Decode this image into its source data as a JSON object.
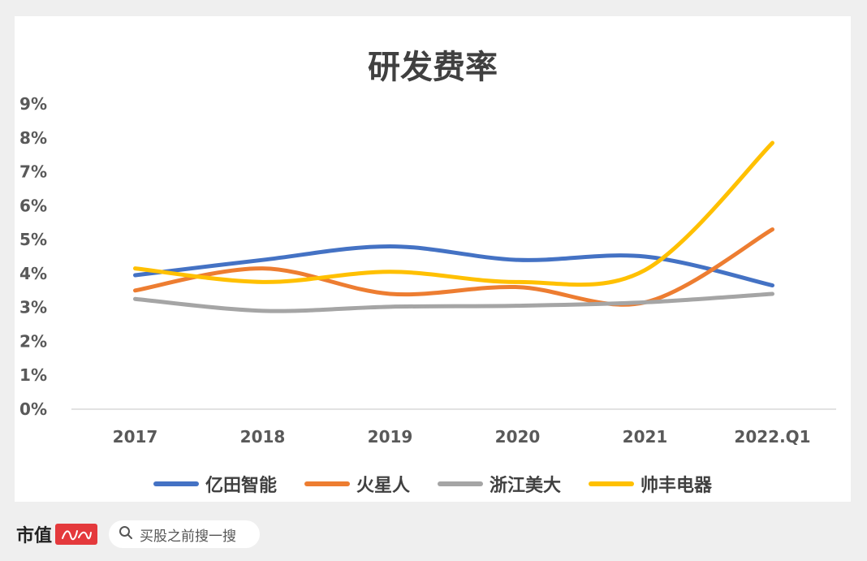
{
  "chart_data": {
    "type": "line",
    "title": "研发费率",
    "categories": [
      "2017",
      "2018",
      "2019",
      "2020",
      "2021",
      "2022.Q1"
    ],
    "y_ticks": [
      "0%",
      "1%",
      "2%",
      "3%",
      "4%",
      "5%",
      "6%",
      "7%",
      "8%",
      "9%"
    ],
    "ylim": [
      0,
      9
    ],
    "y_unit": "%",
    "grid": false,
    "legend_position": "bottom",
    "series": [
      {
        "name": "亿田智能",
        "color": "#4472C4",
        "values": [
          3.95,
          4.4,
          4.8,
          4.4,
          4.5,
          3.65
        ]
      },
      {
        "name": "火星人",
        "color": "#ED7D31",
        "values": [
          3.5,
          4.15,
          3.4,
          3.6,
          3.15,
          5.3
        ]
      },
      {
        "name": "浙江美大",
        "color": "#A5A5A5",
        "values": [
          3.25,
          2.9,
          3.02,
          3.05,
          3.15,
          3.4
        ]
      },
      {
        "name": "帅丰电器",
        "color": "#FFC000",
        "values": [
          4.15,
          3.75,
          4.05,
          3.75,
          4.1,
          7.85
        ]
      }
    ]
  },
  "footer": {
    "logo_text": "市值",
    "search_placeholder": "买股之前搜一搜"
  },
  "colors": {
    "background": "#efefef",
    "card": "#ffffff",
    "logo_seal": "#e4393c"
  },
  "icons": {
    "search": "search-icon",
    "logo": "logo-seal-icon"
  }
}
